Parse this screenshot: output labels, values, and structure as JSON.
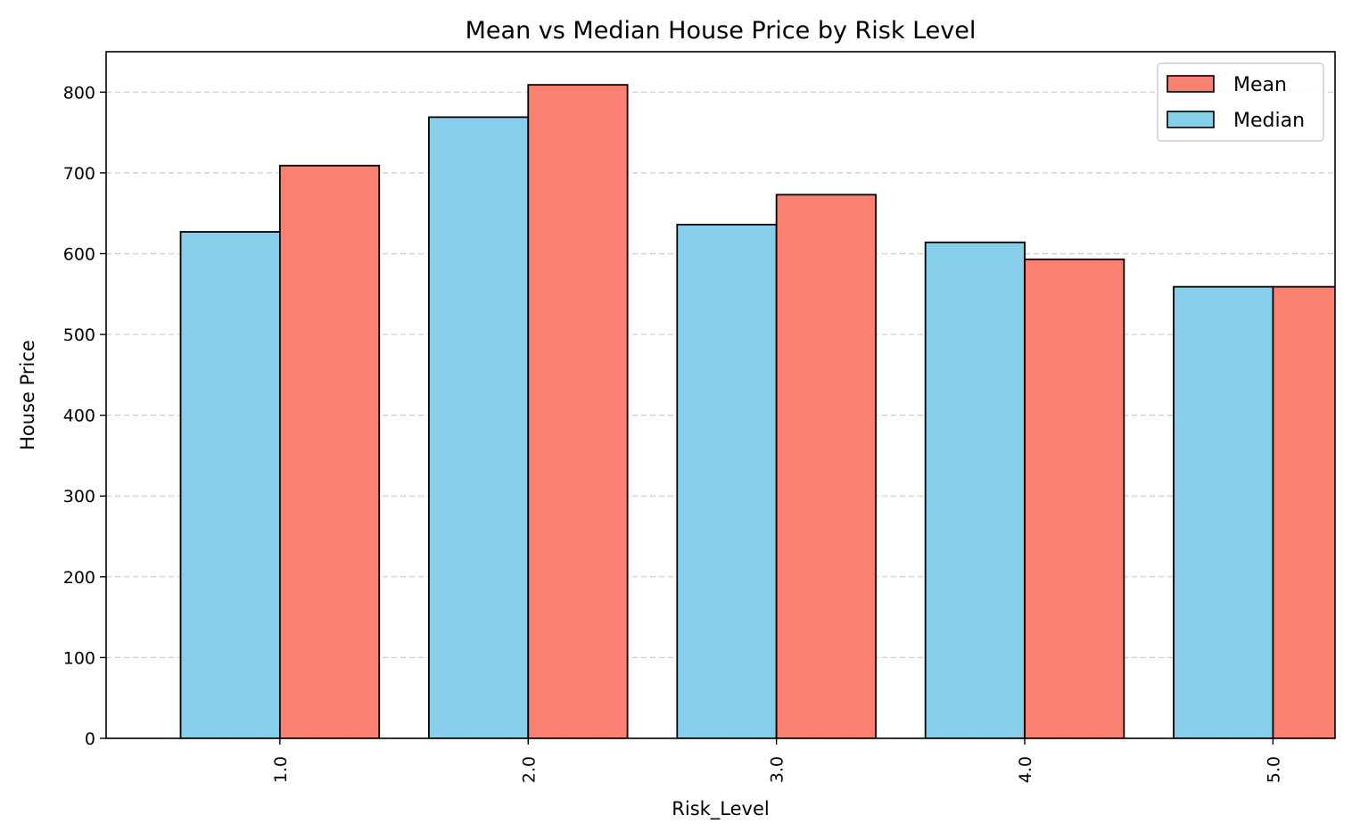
{
  "chart_data": {
    "type": "bar",
    "title": "Mean vs Median House Price by Risk Level",
    "xlabel": "Risk_Level",
    "ylabel": "House Price",
    "categories": [
      "1.0",
      "2.0",
      "3.0",
      "4.0",
      "5.0"
    ],
    "series": [
      {
        "name": "Median",
        "color": "#87CEEB",
        "values": [
          627,
          769,
          636,
          614,
          559
        ]
      },
      {
        "name": "Mean",
        "color": "#FA8072",
        "values": [
          709,
          809,
          673,
          593,
          559
        ]
      }
    ],
    "ylim": [
      0,
      850
    ],
    "xlim": [
      -0.7,
      4.25
    ],
    "yticks": [
      "0",
      "100",
      "200",
      "300",
      "400",
      "500",
      "600",
      "700",
      "800"
    ],
    "grid": {
      "y": true,
      "style": "dashed"
    },
    "legend": {
      "placement": "top-right",
      "order": [
        "Mean",
        "Median"
      ]
    }
  }
}
